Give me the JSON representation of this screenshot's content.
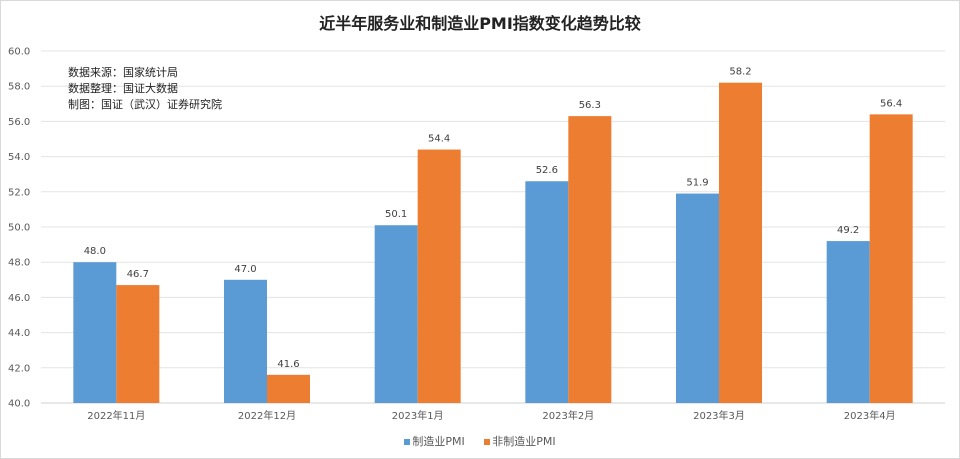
{
  "chart_data": {
    "type": "bar",
    "title": "近半年服务业和制造业PMI指数变化趋势比较",
    "xlabel": "",
    "ylabel": "",
    "ylim": [
      40.0,
      60.0
    ],
    "yticks": [
      "40.0",
      "42.0",
      "44.0",
      "46.0",
      "48.0",
      "50.0",
      "52.0",
      "54.0",
      "56.0",
      "58.0",
      "60.0"
    ],
    "grid": true,
    "legend_position": "bottom",
    "categories": [
      "2022年11月",
      "2022年12月",
      "2023年1月",
      "2023年2月",
      "2023年3月",
      "2023年4月"
    ],
    "series": [
      {
        "name": "制造业PMI",
        "color": "#5b9bd5",
        "values": [
          48.0,
          47.0,
          50.1,
          52.6,
          51.9,
          49.2
        ]
      },
      {
        "name": "非制造业PMI",
        "color": "#ed7d31",
        "values": [
          46.7,
          41.6,
          54.4,
          56.3,
          58.2,
          56.4
        ]
      }
    ],
    "annotations": [
      "数据来源：国家统计局",
      "数据整理：国证大数据",
      "制图：国证（武汉）证券研究院"
    ]
  }
}
